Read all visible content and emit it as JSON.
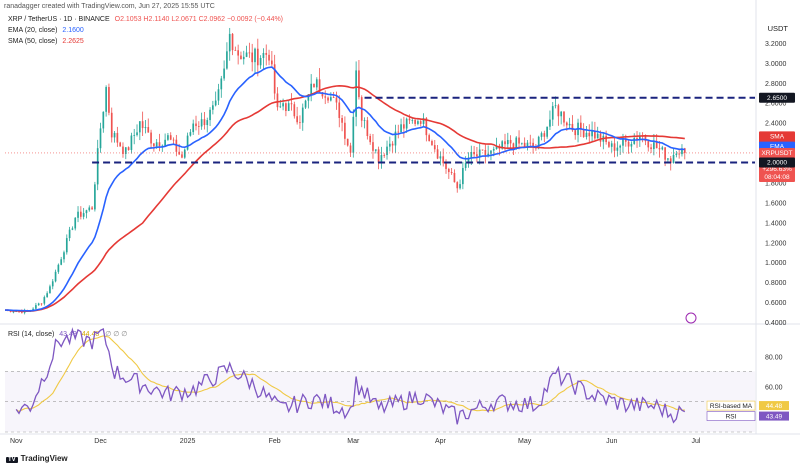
{
  "header": {
    "published_by": "ranadagger created with TradingView.com, Jun 27, 2025 15:55 UTC",
    "symbol_line": "XRP / TetherUS · 1D · BINANCE",
    "ohlc": "O2.1053  H2.1140  L2.0671  C2.0962  −0.0092 (−0.44%)",
    "ema_label": "EMA (20, close)",
    "ema_value": "2.1600",
    "sma_label": "SMA (50, close)",
    "sma_value": "2.2625",
    "rsi_label": "RSI (14, close)",
    "rsi_value": "43.49",
    "rsi_ma_value": "44.48",
    "rsi_extra": "∅ ∅ ∅",
    "currency": "USDT"
  },
  "footer": {
    "logo_text": "TradingView",
    "logo_mark": "TV"
  },
  "colors": {
    "up": "#26a69a",
    "down": "#ef5350",
    "ema": "#2962ff",
    "sma": "#e53935",
    "rsi": "#7e57c2",
    "rsi_ma": "#f0c945",
    "level": "#1a237e",
    "bg": "#ffffff"
  },
  "price_axis": {
    "ticks": [
      "3.2000",
      "3.0000",
      "2.8000",
      "2.6000",
      "2.4000",
      "2.2000",
      "2.0000",
      "1.8000",
      "1.6000",
      "1.4000",
      "1.2000",
      "1.0000",
      "0.8000",
      "0.6000",
      "0.4000"
    ],
    "tick_values": [
      3.2,
      3.0,
      2.8,
      2.6,
      2.4,
      2.2,
      2.0,
      1.8,
      1.6,
      1.4,
      1.2,
      1.0,
      0.8,
      0.6,
      0.4
    ]
  },
  "rsi_axis": {
    "ticks": [
      "80.00",
      "60.00",
      "40.00"
    ],
    "tick_values": [
      80,
      60,
      40
    ]
  },
  "time_axis": {
    "labels": [
      "Nov",
      "Dec",
      "2025",
      "Feb",
      "Mar",
      "Apr",
      "May",
      "Jun",
      "Jul"
    ]
  },
  "badges": [
    {
      "label": "2.6500",
      "value": 2.65,
      "color": "#131722",
      "text_color": "#ffffff"
    },
    {
      "label": "SMA",
      "value": 2.2625,
      "color": "#e53935",
      "text_color": "#ffffff",
      "line2": "2.2625"
    },
    {
      "label": "EMA",
      "value": 2.16,
      "color": "#2962ff",
      "text_color": "#ffffff",
      "line2": "2.1600"
    },
    {
      "label": "XRPUSDT",
      "value": 2.0962,
      "color": "#ef5350",
      "text_color": "#ffffff",
      "line2": "2.0962",
      "line3": "+296.63%",
      "line4": "08:04:08"
    },
    {
      "label": "2.0000",
      "value": 2.0,
      "color": "#131722",
      "text_color": "#ffffff"
    }
  ],
  "rsi_badges": [
    {
      "label": "RSI-based MA",
      "value": 44.48,
      "text": "44.48",
      "color": "#f0c945"
    },
    {
      "label": "RSI",
      "value": 43.49,
      "text": "43.49",
      "color": "#7e57c2"
    }
  ],
  "chart_data": {
    "type": "candlestick",
    "title": "XRP / TetherUS · 1D · BINANCE",
    "y_range": [
      0.4,
      3.35
    ],
    "horizontal_levels": [
      2.65,
      2.0
    ],
    "anchor_series": {
      "name": "XRPUSDT close (approx.)",
      "points": [
        [
          "2024-10-28",
          0.52
        ],
        [
          "2024-11-05",
          0.5
        ],
        [
          "2024-11-10",
          0.6
        ],
        [
          "2024-11-13",
          0.75
        ],
        [
          "2024-11-17",
          1.05
        ],
        [
          "2024-11-22",
          1.45
        ],
        [
          "2024-11-28",
          1.55
        ],
        [
          "2024-12-01",
          2.35
        ],
        [
          "2024-12-03",
          2.75
        ],
        [
          "2024-12-05",
          2.3
        ],
        [
          "2024-12-10",
          2.1
        ],
        [
          "2024-12-15",
          2.4
        ],
        [
          "2024-12-20",
          2.2
        ],
        [
          "2024-12-25",
          2.25
        ],
        [
          "2024-12-30",
          2.05
        ],
        [
          "2025-01-03",
          2.4
        ],
        [
          "2025-01-06",
          2.4
        ],
        [
          "2025-01-11",
          2.55
        ],
        [
          "2025-01-14",
          2.9
        ],
        [
          "2025-01-16",
          3.28
        ],
        [
          "2025-01-19",
          3.1
        ],
        [
          "2025-01-24",
          3.05
        ],
        [
          "2025-01-30",
          3.1
        ],
        [
          "2025-02-02",
          2.5
        ],
        [
          "2025-02-04",
          2.6
        ],
        [
          "2025-02-10",
          2.45
        ],
        [
          "2025-02-15",
          2.8
        ],
        [
          "2025-02-20",
          2.7
        ],
        [
          "2025-02-24",
          2.5
        ],
        [
          "2025-02-28",
          2.1
        ],
        [
          "2025-03-02",
          2.95
        ],
        [
          "2025-03-04",
          2.45
        ],
        [
          "2025-03-10",
          2.05
        ],
        [
          "2025-03-18",
          2.35
        ],
        [
          "2025-03-25",
          2.45
        ],
        [
          "2025-03-31",
          2.1
        ],
        [
          "2025-04-07",
          1.75
        ],
        [
          "2025-04-11",
          2.05
        ],
        [
          "2025-04-20",
          2.1
        ],
        [
          "2025-04-26",
          2.2
        ],
        [
          "2025-05-05",
          2.15
        ],
        [
          "2025-05-12",
          2.55
        ],
        [
          "2025-05-18",
          2.35
        ],
        [
          "2025-05-25",
          2.3
        ],
        [
          "2025-06-01",
          2.15
        ],
        [
          "2025-06-06",
          2.2
        ],
        [
          "2025-06-11",
          2.28
        ],
        [
          "2025-06-17",
          2.15
        ],
        [
          "2025-06-22",
          2.03
        ],
        [
          "2025-06-24",
          2.15
        ],
        [
          "2025-06-27",
          2.0962
        ]
      ]
    },
    "ema20_final": 2.16,
    "sma50_final": 2.2625,
    "rsi": {
      "name": "RSI (14, close)",
      "final": 43.49,
      "ma_final": 44.48,
      "points": [
        [
          "2024-11-01",
          45
        ],
        [
          "2024-11-06",
          47
        ],
        [
          "2024-11-12",
          72
        ],
        [
          "2024-11-16",
          90
        ],
        [
          "2024-11-22",
          92
        ],
        [
          "2024-11-28",
          90
        ],
        [
          "2024-12-02",
          96
        ],
        [
          "2024-12-06",
          70
        ],
        [
          "2024-12-15",
          62
        ],
        [
          "2024-12-25",
          55
        ],
        [
          "2025-01-03",
          58
        ],
        [
          "2025-01-16",
          72
        ],
        [
          "2025-01-24",
          62
        ],
        [
          "2025-02-03",
          45
        ],
        [
          "2025-02-15",
          52
        ],
        [
          "2025-02-28",
          44
        ],
        [
          "2025-03-02",
          62
        ],
        [
          "2025-03-10",
          45
        ],
        [
          "2025-03-25",
          54
        ],
        [
          "2025-04-07",
          40
        ],
        [
          "2025-04-20",
          50
        ],
        [
          "2025-05-05",
          48
        ],
        [
          "2025-05-12",
          68
        ],
        [
          "2025-05-25",
          54
        ],
        [
          "2025-06-06",
          48
        ],
        [
          "2025-06-17",
          47
        ],
        [
          "2025-06-22",
          42
        ],
        [
          "2025-06-27",
          43.49
        ]
      ]
    }
  }
}
